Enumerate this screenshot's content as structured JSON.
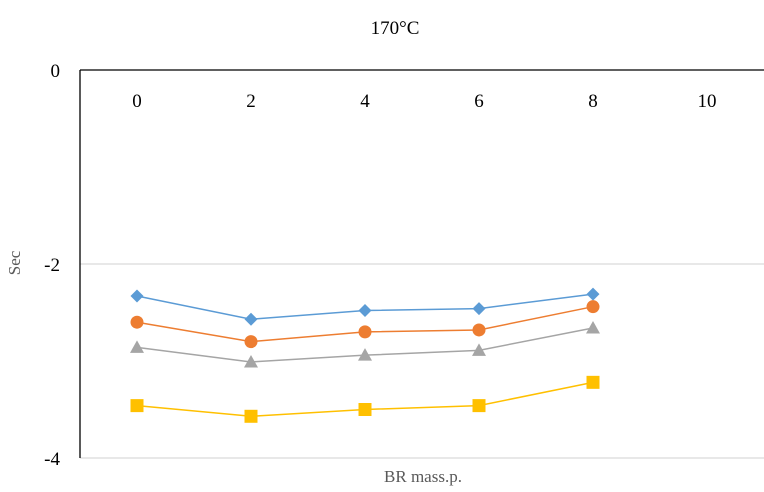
{
  "chart_data": {
    "type": "line",
    "title": "170°C",
    "xlabel": "BR mass.p.",
    "ylabel": "Sec",
    "x": [
      0,
      2,
      4,
      6,
      8
    ],
    "x_ticks": [
      "0",
      "2",
      "4",
      "6",
      "8",
      "10"
    ],
    "xlim": [
      -1,
      11
    ],
    "y_ticks": [
      "0",
      "-2",
      "-4"
    ],
    "ylim": [
      -4,
      0
    ],
    "x_axis_position": "top",
    "grid": "horizontal",
    "legend": "none",
    "series": [
      {
        "color": "#5B9BD5",
        "marker": "diamond",
        "values": [
          -2.33,
          -2.57,
          -2.48,
          -2.46,
          -2.31
        ]
      },
      {
        "color": "#ED7D31",
        "marker": "circle",
        "values": [
          -2.6,
          -2.8,
          -2.7,
          -2.68,
          -2.44
        ]
      },
      {
        "color": "#A5A5A5",
        "marker": "triangle",
        "values": [
          -2.86,
          -3.01,
          -2.94,
          -2.89,
          -2.66
        ]
      },
      {
        "color": "#FFC000",
        "marker": "square",
        "values": [
          -3.46,
          -3.57,
          -3.5,
          -3.46,
          -3.22
        ]
      }
    ]
  }
}
